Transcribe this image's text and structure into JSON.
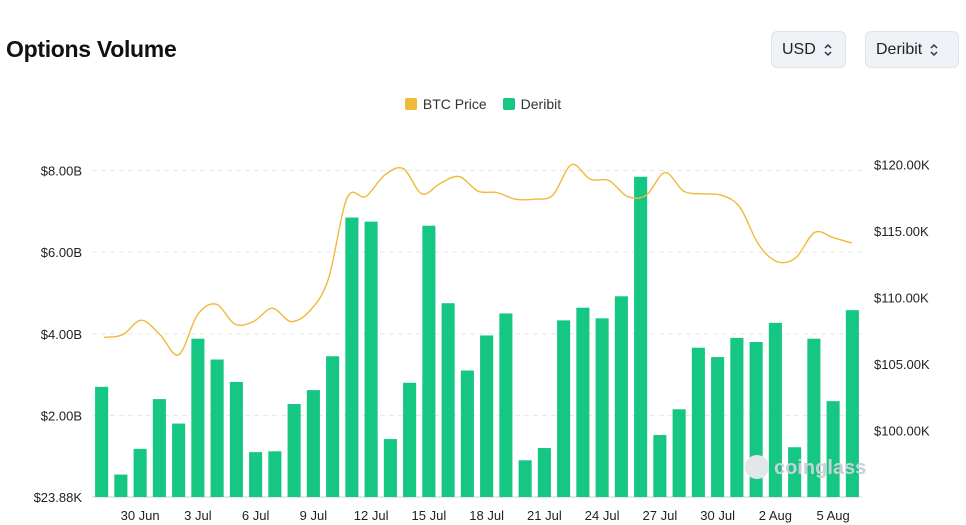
{
  "header": {
    "title": "Options Volume",
    "currency_select": "USD",
    "exchange_select": "Deribit"
  },
  "watermark": "coinglass",
  "colors": {
    "bar": "#16c784",
    "line": "#f0b93a",
    "grid": "#e6e6e6",
    "axis": "#222222"
  },
  "chart_data": {
    "type": "bar",
    "legend": [
      {
        "name": "BTC Price",
        "color": "#f0b93a"
      },
      {
        "name": "Deribit",
        "color": "#16c784"
      }
    ],
    "legend_position": "top-center",
    "grid": true,
    "y_left_ticks": [
      "$23.88K",
      "$2.00B",
      "$4.00B",
      "$6.00B",
      "$8.00B"
    ],
    "y_left_tick_values": [
      2.388e-05,
      2.0,
      4.0,
      6.0,
      8.0
    ],
    "y_left_unit": "billion USD",
    "y_left_range": [
      0,
      8.8
    ],
    "y_right_ticks": [
      "$100.00K",
      "$105.00K",
      "$110.00K",
      "$115.00K",
      "$120.00K"
    ],
    "y_right_tick_values": [
      100000,
      105000,
      110000,
      115000,
      120000
    ],
    "y_right_range": [
      95000,
      122000
    ],
    "x_tick_labels": [
      "30 Jun",
      "3 Jul",
      "6 Jul",
      "9 Jul",
      "12 Jul",
      "15 Jul",
      "18 Jul",
      "21 Jul",
      "24 Jul",
      "27 Jul",
      "30 Jul",
      "2 Aug",
      "5 Aug"
    ],
    "x_tick_every": 3,
    "x_tick_start_index": 2,
    "series": [
      {
        "name": "Deribit",
        "type": "bar",
        "axis": "left",
        "values": [
          2.7,
          0.55,
          1.18,
          2.4,
          1.8,
          3.88,
          3.37,
          2.82,
          1.1,
          1.12,
          2.28,
          2.62,
          3.45,
          6.85,
          6.75,
          1.42,
          2.8,
          6.65,
          4.75,
          3.1,
          3.96,
          4.5,
          0.9,
          1.2,
          4.33,
          4.64,
          4.38,
          4.92,
          7.85,
          1.52,
          2.15,
          3.66,
          3.43,
          3.9,
          3.8,
          4.27,
          1.22,
          3.88,
          2.35,
          4.58
        ]
      },
      {
        "name": "BTC Price",
        "type": "line",
        "axis": "right",
        "values": [
          107000,
          107200,
          108300,
          107200,
          105700,
          108700,
          109500,
          108000,
          108200,
          109200,
          108200,
          109000,
          111400,
          117500,
          117600,
          119200,
          119700,
          117800,
          118600,
          119100,
          118000,
          117900,
          117400,
          117400,
          117700,
          120000,
          118900,
          118800,
          117600,
          117700,
          119400,
          118000,
          117800,
          117700,
          116800,
          114000,
          112700,
          113000,
          114900,
          114500,
          114100
        ]
      }
    ]
  }
}
